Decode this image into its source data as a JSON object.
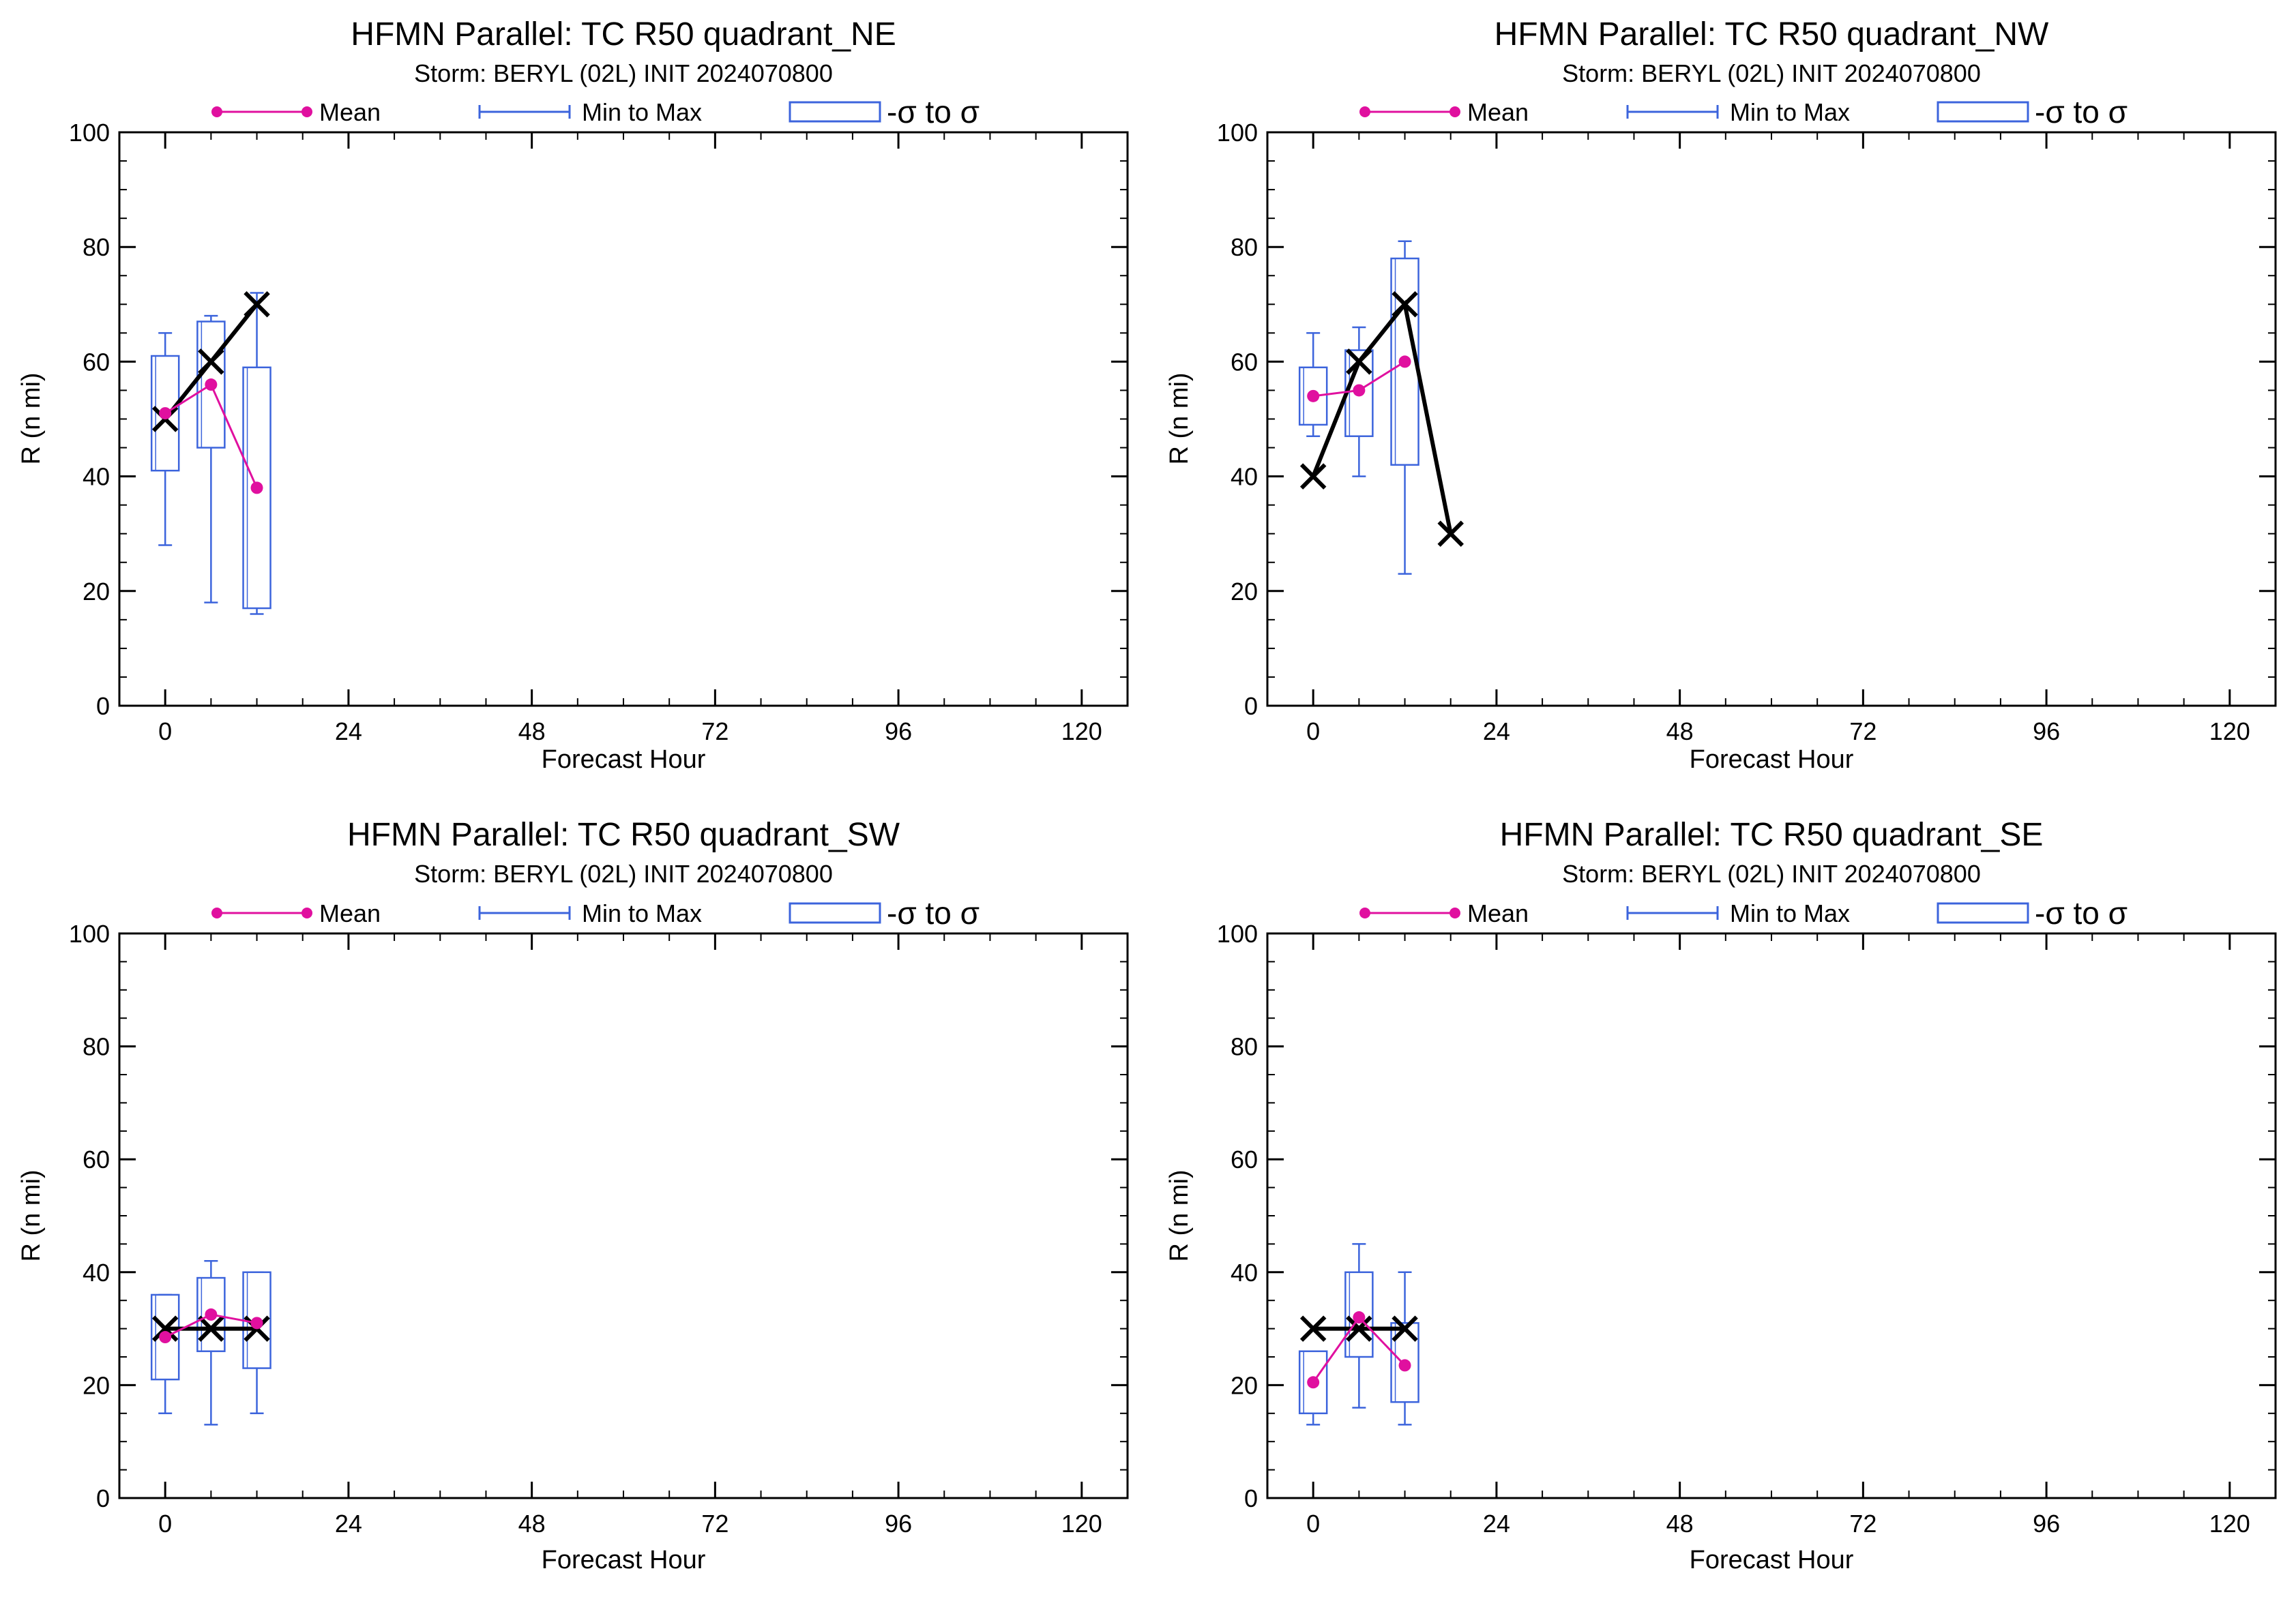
{
  "legend": {
    "mean_label": "Mean",
    "minmax_label": "Min to Max",
    "sigma_label": "-σ to σ"
  },
  "colors": {
    "mean": "#e0109f",
    "box": "#3c64dc",
    "observed": "#000000",
    "axis": "#000000"
  },
  "chart_data": [
    {
      "type": "box-line",
      "title": "HFMN Parallel: TC  R50 quadrant_NE",
      "subtitle": "Storm: BERYL (02L) INIT 2024070800",
      "xlabel": "Forecast Hour",
      "ylabel": "R (n mi)",
      "xlim": [
        -6,
        126
      ],
      "ylim": [
        0,
        100
      ],
      "xticks": [
        0,
        24,
        48,
        72,
        96,
        120
      ],
      "yticks": [
        0,
        20,
        40,
        60,
        80,
        100
      ],
      "x_minor_step": 6,
      "y_minor_step": 5,
      "legend_position": "top",
      "grid": false,
      "boxes": [
        {
          "x": 0,
          "min": 28,
          "max": 65,
          "sigma_low": 41,
          "sigma_high": 61
        },
        {
          "x": 6,
          "min": 18,
          "max": 68,
          "sigma_low": 45,
          "sigma_high": 67
        },
        {
          "x": 12,
          "min": 16,
          "max": 72,
          "sigma_low": 17,
          "sigma_high": 59
        }
      ],
      "mean": {
        "x": [
          0,
          6,
          12
        ],
        "y": [
          51,
          56,
          38
        ]
      },
      "observed": {
        "x": [
          0,
          6,
          12
        ],
        "y": [
          50,
          60,
          70
        ]
      }
    },
    {
      "type": "box-line",
      "title": "HFMN Parallel: TC  R50 quadrant_NW",
      "subtitle": "Storm: BERYL (02L) INIT 2024070800",
      "xlabel": "Forecast Hour",
      "ylabel": "R (n mi)",
      "xlim": [
        -6,
        126
      ],
      "ylim": [
        0,
        100
      ],
      "xticks": [
        0,
        24,
        48,
        72,
        96,
        120
      ],
      "yticks": [
        0,
        20,
        40,
        60,
        80,
        100
      ],
      "x_minor_step": 6,
      "y_minor_step": 5,
      "legend_position": "top",
      "grid": false,
      "boxes": [
        {
          "x": 0,
          "min": 47,
          "max": 65,
          "sigma_low": 49,
          "sigma_high": 59
        },
        {
          "x": 6,
          "min": 40,
          "max": 66,
          "sigma_low": 47,
          "sigma_high": 62
        },
        {
          "x": 12,
          "min": 23,
          "max": 81,
          "sigma_low": 42,
          "sigma_high": 78
        }
      ],
      "mean": {
        "x": [
          0,
          6,
          12
        ],
        "y": [
          54,
          55,
          60
        ]
      },
      "observed": {
        "x": [
          0,
          6,
          12,
          18
        ],
        "y": [
          40,
          60,
          70,
          30
        ]
      }
    },
    {
      "type": "box-line",
      "title": "HFMN Parallel: TC  R50 quadrant_SW",
      "subtitle": "Storm: BERYL (02L) INIT 2024070800",
      "xlabel": "Forecast Hour",
      "ylabel": "R (n mi)",
      "xlim": [
        -6,
        126
      ],
      "ylim": [
        0,
        100
      ],
      "xticks": [
        0,
        24,
        48,
        72,
        96,
        120
      ],
      "yticks": [
        0,
        20,
        40,
        60,
        80,
        100
      ],
      "x_minor_step": 6,
      "y_minor_step": 5,
      "legend_position": "top",
      "grid": false,
      "boxes": [
        {
          "x": 0,
          "min": 15,
          "max": 36,
          "sigma_low": 21,
          "sigma_high": 36
        },
        {
          "x": 6,
          "min": 13,
          "max": 42,
          "sigma_low": 26,
          "sigma_high": 39
        },
        {
          "x": 12,
          "min": 15,
          "max": 40,
          "sigma_low": 23,
          "sigma_high": 40
        }
      ],
      "mean": {
        "x": [
          0,
          6,
          12
        ],
        "y": [
          28.5,
          32.5,
          31
        ]
      },
      "observed": {
        "x": [
          0,
          6,
          12
        ],
        "y": [
          30,
          30,
          30
        ]
      }
    },
    {
      "type": "box-line",
      "title": "HFMN Parallel: TC  R50 quadrant_SE",
      "subtitle": "Storm: BERYL (02L) INIT 2024070800",
      "xlabel": "Forecast Hour",
      "ylabel": "R (n mi)",
      "xlim": [
        -6,
        126
      ],
      "ylim": [
        0,
        100
      ],
      "xticks": [
        0,
        24,
        48,
        72,
        96,
        120
      ],
      "yticks": [
        0,
        20,
        40,
        60,
        80,
        100
      ],
      "x_minor_step": 6,
      "y_minor_step": 5,
      "legend_position": "top",
      "grid": false,
      "boxes": [
        {
          "x": 0,
          "min": 13,
          "max": 26,
          "sigma_low": 15,
          "sigma_high": 26
        },
        {
          "x": 6,
          "min": 16,
          "max": 45,
          "sigma_low": 25,
          "sigma_high": 40
        },
        {
          "x": 12,
          "min": 13,
          "max": 40,
          "sigma_low": 17,
          "sigma_high": 31
        }
      ],
      "mean": {
        "x": [
          0,
          6,
          12
        ],
        "y": [
          20.5,
          32,
          23.5
        ]
      },
      "observed": {
        "x": [
          0,
          6,
          12
        ],
        "y": [
          30,
          30,
          30
        ]
      }
    }
  ]
}
